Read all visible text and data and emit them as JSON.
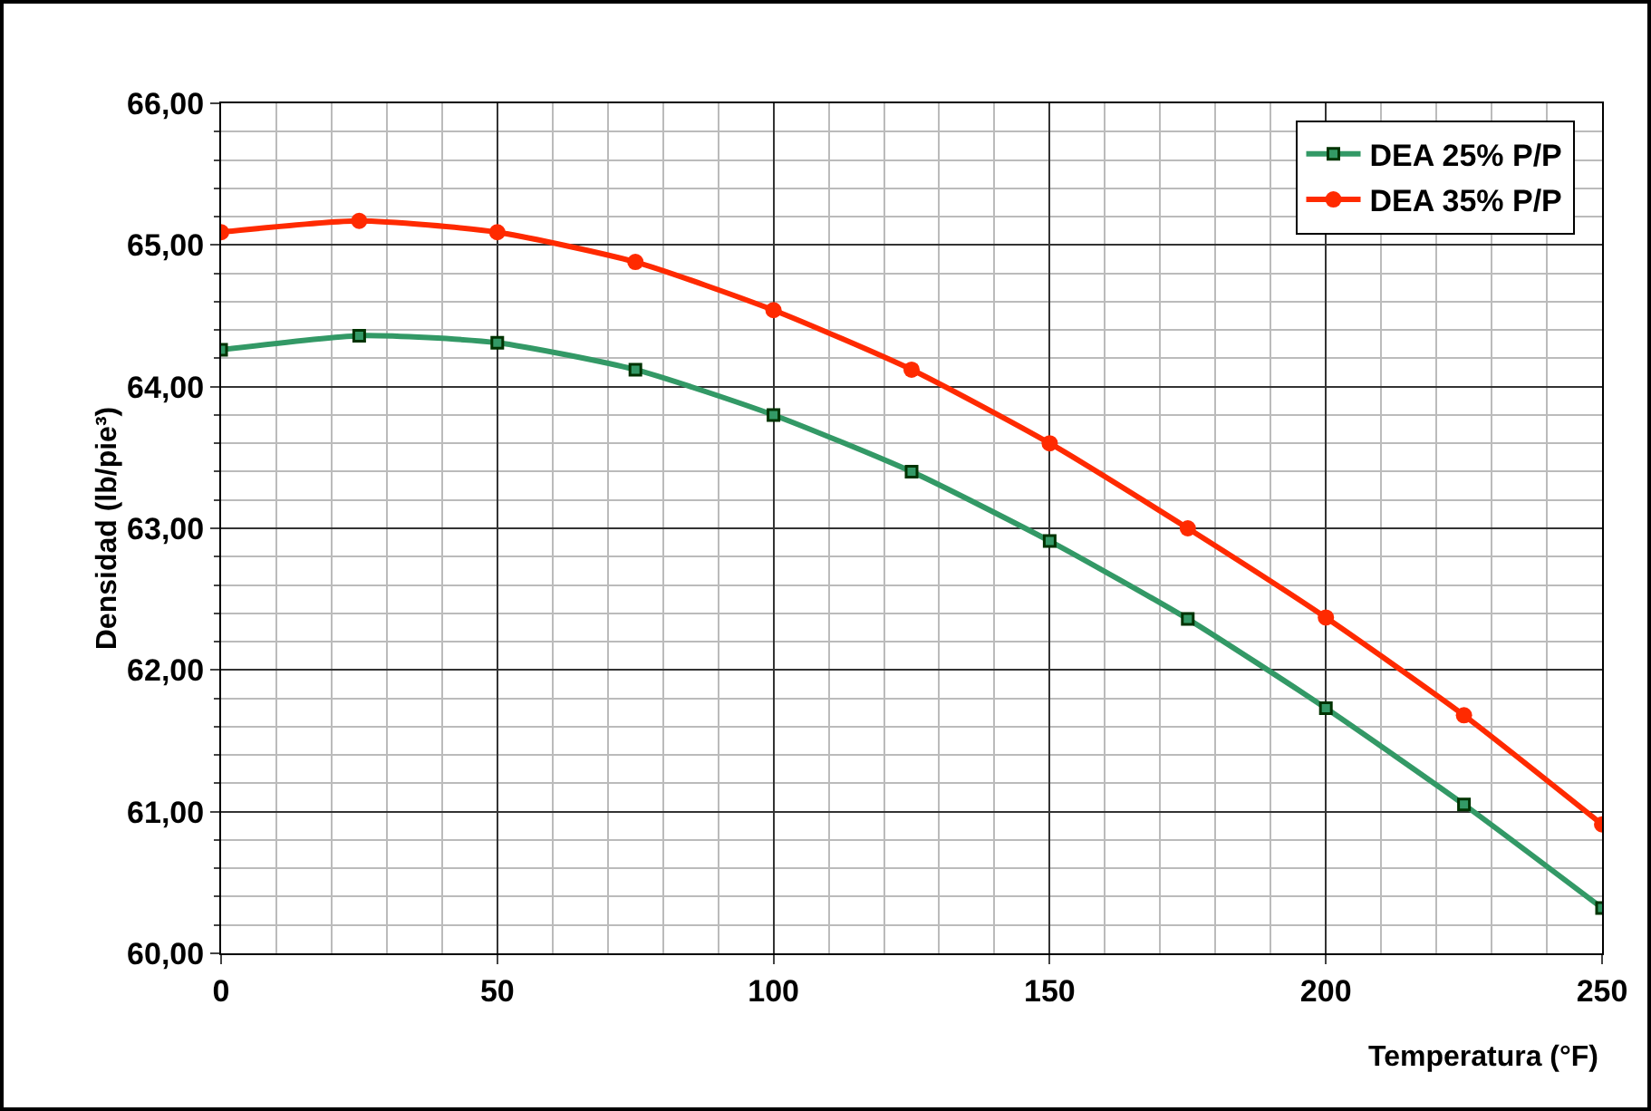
{
  "chart_data": {
    "type": "line",
    "xlabel": "Temperatura (°F)",
    "ylabel": "Densidad (lb/pie³)",
    "x": [
      0,
      25,
      50,
      75,
      100,
      125,
      150,
      175,
      200,
      225,
      250
    ],
    "series": [
      {
        "name": "DEA 25% P/P",
        "color": "#339966",
        "marker": "square",
        "values": [
          64.26,
          64.36,
          64.31,
          64.12,
          63.8,
          63.4,
          62.91,
          62.36,
          61.73,
          61.05,
          60.32
        ]
      },
      {
        "name": "DEA 35% P/P",
        "color": "#ff2a00",
        "marker": "circle",
        "values": [
          65.09,
          65.17,
          65.09,
          64.88,
          64.54,
          64.12,
          63.6,
          63.0,
          62.37,
          61.68,
          60.91
        ]
      }
    ],
    "xlim": [
      0,
      250
    ],
    "xticks": [
      0,
      50,
      100,
      150,
      200,
      250
    ],
    "ylim": [
      60,
      66
    ],
    "yticks": [
      {
        "value": 60,
        "label": "60,00"
      },
      {
        "value": 61,
        "label": "61,00"
      },
      {
        "value": 62,
        "label": "62,00"
      },
      {
        "value": 63,
        "label": "63,00"
      },
      {
        "value": 64,
        "label": "64,00"
      },
      {
        "value": 65,
        "label": "65,00"
      },
      {
        "value": 66,
        "label": "66,00"
      }
    ],
    "grid": true,
    "legend": "top right",
    "line_style": "solid"
  }
}
